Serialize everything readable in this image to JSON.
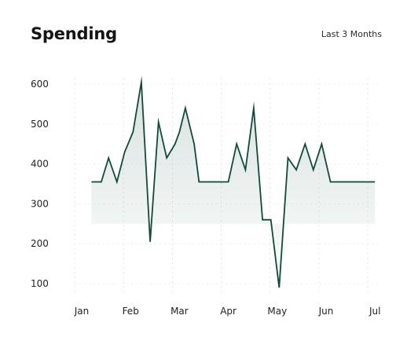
{
  "header": {
    "title": "Spending",
    "range_label": "Last 3 Months"
  },
  "colors": {
    "line": "#0e4b3b",
    "fill_top": "#0e4b3b",
    "grid": "#e4e4e4",
    "text": "#222222"
  },
  "chart_data": {
    "type": "area",
    "title": "Spending",
    "xlabel": "",
    "ylabel": "",
    "grid": true,
    "x_ticks": [
      {
        "label": "Jan",
        "pos": 0
      },
      {
        "label": "Feb",
        "pos": 1
      },
      {
        "label": "Mar",
        "pos": 2
      },
      {
        "label": "Apr",
        "pos": 3
      },
      {
        "label": "May",
        "pos": 4
      },
      {
        "label": "Jun",
        "pos": 5
      },
      {
        "label": "Jul",
        "pos": 6
      }
    ],
    "y_ticks": [
      100,
      200,
      300,
      400,
      500,
      600
    ],
    "ylim": [
      60,
      620
    ],
    "xlim": [
      -0.3,
      6.0
    ],
    "points": [
      {
        "x": 0.2,
        "y": 355
      },
      {
        "x": 0.4,
        "y": 355
      },
      {
        "x": 0.55,
        "y": 415
      },
      {
        "x": 0.72,
        "y": 355
      },
      {
        "x": 0.88,
        "y": 430
      },
      {
        "x": 1.05,
        "y": 480
      },
      {
        "x": 1.22,
        "y": 605
      },
      {
        "x": 1.4,
        "y": 205
      },
      {
        "x": 1.57,
        "y": 505
      },
      {
        "x": 1.74,
        "y": 415
      },
      {
        "x": 1.91,
        "y": 450
      },
      {
        "x": 2.0,
        "y": 480
      },
      {
        "x": 2.12,
        "y": 540
      },
      {
        "x": 2.3,
        "y": 450
      },
      {
        "x": 2.4,
        "y": 355
      },
      {
        "x": 2.6,
        "y": 355
      },
      {
        "x": 3.0,
        "y": 355
      },
      {
        "x": 3.17,
        "y": 450
      },
      {
        "x": 3.35,
        "y": 385
      },
      {
        "x": 3.52,
        "y": 540
      },
      {
        "x": 3.7,
        "y": 260
      },
      {
        "x": 3.87,
        "y": 260
      },
      {
        "x": 4.04,
        "y": 90
      },
      {
        "x": 4.22,
        "y": 415
      },
      {
        "x": 4.39,
        "y": 385
      },
      {
        "x": 4.57,
        "y": 450
      },
      {
        "x": 4.74,
        "y": 385
      },
      {
        "x": 4.91,
        "y": 450
      },
      {
        "x": 5.09,
        "y": 355
      },
      {
        "x": 5.5,
        "y": 355
      },
      {
        "x": 6.0,
        "y": 355
      }
    ]
  }
}
